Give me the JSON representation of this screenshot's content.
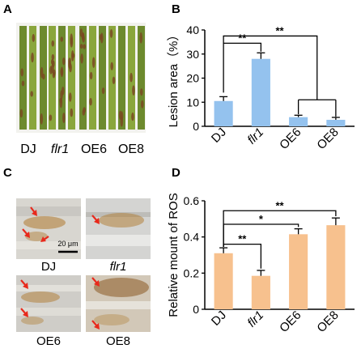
{
  "panels": {
    "a": {
      "letter": "A",
      "groups": [
        "DJ",
        "flr1",
        "OE6",
        "OE8"
      ],
      "colors": {
        "leaf": "#8aa63c",
        "leaf_dark": "#6d8a2e",
        "lesion": "#7a4a22",
        "bg": "#f2f2ee"
      }
    },
    "b": {
      "letter": "B",
      "ylabel": "Lesion area（%）",
      "sig": [
        "**",
        "**"
      ]
    },
    "c": {
      "letter": "C",
      "scale_bar": "20 μm",
      "labels": [
        "DJ",
        "flr1",
        "OE6",
        "OE8"
      ],
      "colors": {
        "arrow": "#e8291c",
        "stain": "#b07a2e",
        "bg": "#d8d6d0"
      }
    },
    "d": {
      "letter": "D",
      "ylabel": "Relative mount of  ROS",
      "sig": [
        "**",
        "*",
        "**"
      ]
    }
  },
  "chart_data": [
    {
      "type": "bar",
      "panel": "B",
      "categories": [
        "DJ",
        "flr1",
        "OE6",
        "OE8"
      ],
      "values": [
        10.5,
        28,
        3.8,
        2.7
      ],
      "errors": [
        1.8,
        2.5,
        0.8,
        1.0
      ],
      "ylabel": "Lesion area（%）",
      "ylim": [
        0,
        40
      ],
      "yticks": [
        0,
        10,
        20,
        30,
        40
      ],
      "color": "#94c2ee",
      "italic_categories": [
        "flr1"
      ],
      "comparisons": [
        {
          "from": "DJ",
          "to": [
            "flr1"
          ],
          "label": "**"
        },
        {
          "from": "DJ",
          "to": [
            "OE6",
            "OE8"
          ],
          "label": "**"
        }
      ]
    },
    {
      "type": "bar",
      "panel": "D",
      "categories": [
        "DJ",
        "flr1",
        "OE6",
        "OE8"
      ],
      "values": [
        0.31,
        0.185,
        0.415,
        0.465
      ],
      "errors": [
        0.03,
        0.03,
        0.03,
        0.04
      ],
      "ylabel": "Relative mount of  ROS",
      "ylim": [
        0,
        0.6
      ],
      "yticks": [
        0,
        0.2,
        0.4,
        0.6
      ],
      "color": "#f7c18e",
      "italic_categories": [
        "flr1"
      ],
      "comparisons": [
        {
          "from": "DJ",
          "to": [
            "flr1"
          ],
          "label": "**"
        },
        {
          "from": "DJ",
          "to": [
            "OE6"
          ],
          "label": "*"
        },
        {
          "from": "DJ",
          "to": [
            "OE8"
          ],
          "label": "**"
        }
      ]
    }
  ]
}
